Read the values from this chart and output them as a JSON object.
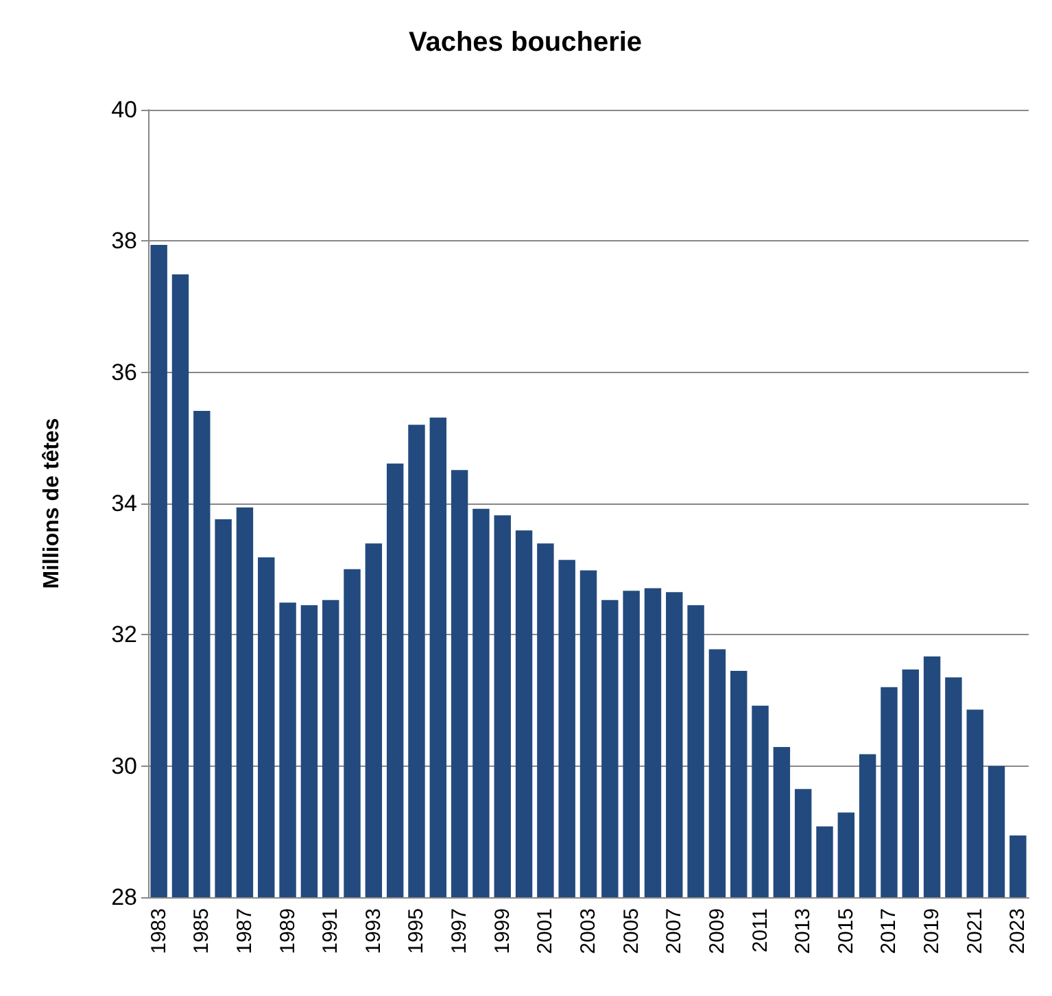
{
  "chart_data": {
    "type": "bar",
    "title": "Vaches boucherie",
    "ylabel": "Millions de têtes",
    "categories": [
      "1983",
      null,
      "1985",
      null,
      "1987",
      null,
      "1989",
      null,
      "1991",
      null,
      "1993",
      null,
      "1995",
      null,
      "1997",
      null,
      "1999",
      null,
      "2001",
      null,
      "2003",
      null,
      "2005",
      null,
      "2007",
      null,
      "2009",
      null,
      "2011",
      null,
      "2013",
      null,
      "2015",
      null,
      "2017",
      null,
      "2019",
      null,
      "2021",
      null,
      "2023"
    ],
    "values": [
      37.94,
      37.49,
      35.41,
      33.76,
      33.94,
      33.18,
      32.49,
      32.45,
      32.53,
      33.0,
      33.39,
      34.61,
      35.2,
      35.31,
      34.51,
      33.92,
      33.82,
      33.59,
      33.39,
      33.14,
      32.98,
      32.53,
      32.67,
      32.71,
      32.65,
      32.45,
      31.78,
      31.45,
      30.92,
      30.29,
      29.65,
      29.08,
      29.29,
      30.18,
      31.2,
      31.47,
      31.67,
      31.35,
      30.86,
      30.0,
      28.94
    ],
    "color": "#234a7e",
    "ylim": [
      28,
      40
    ],
    "yticks": [
      28,
      30,
      32,
      34,
      36,
      38,
      40
    ],
    "grid": "y"
  }
}
